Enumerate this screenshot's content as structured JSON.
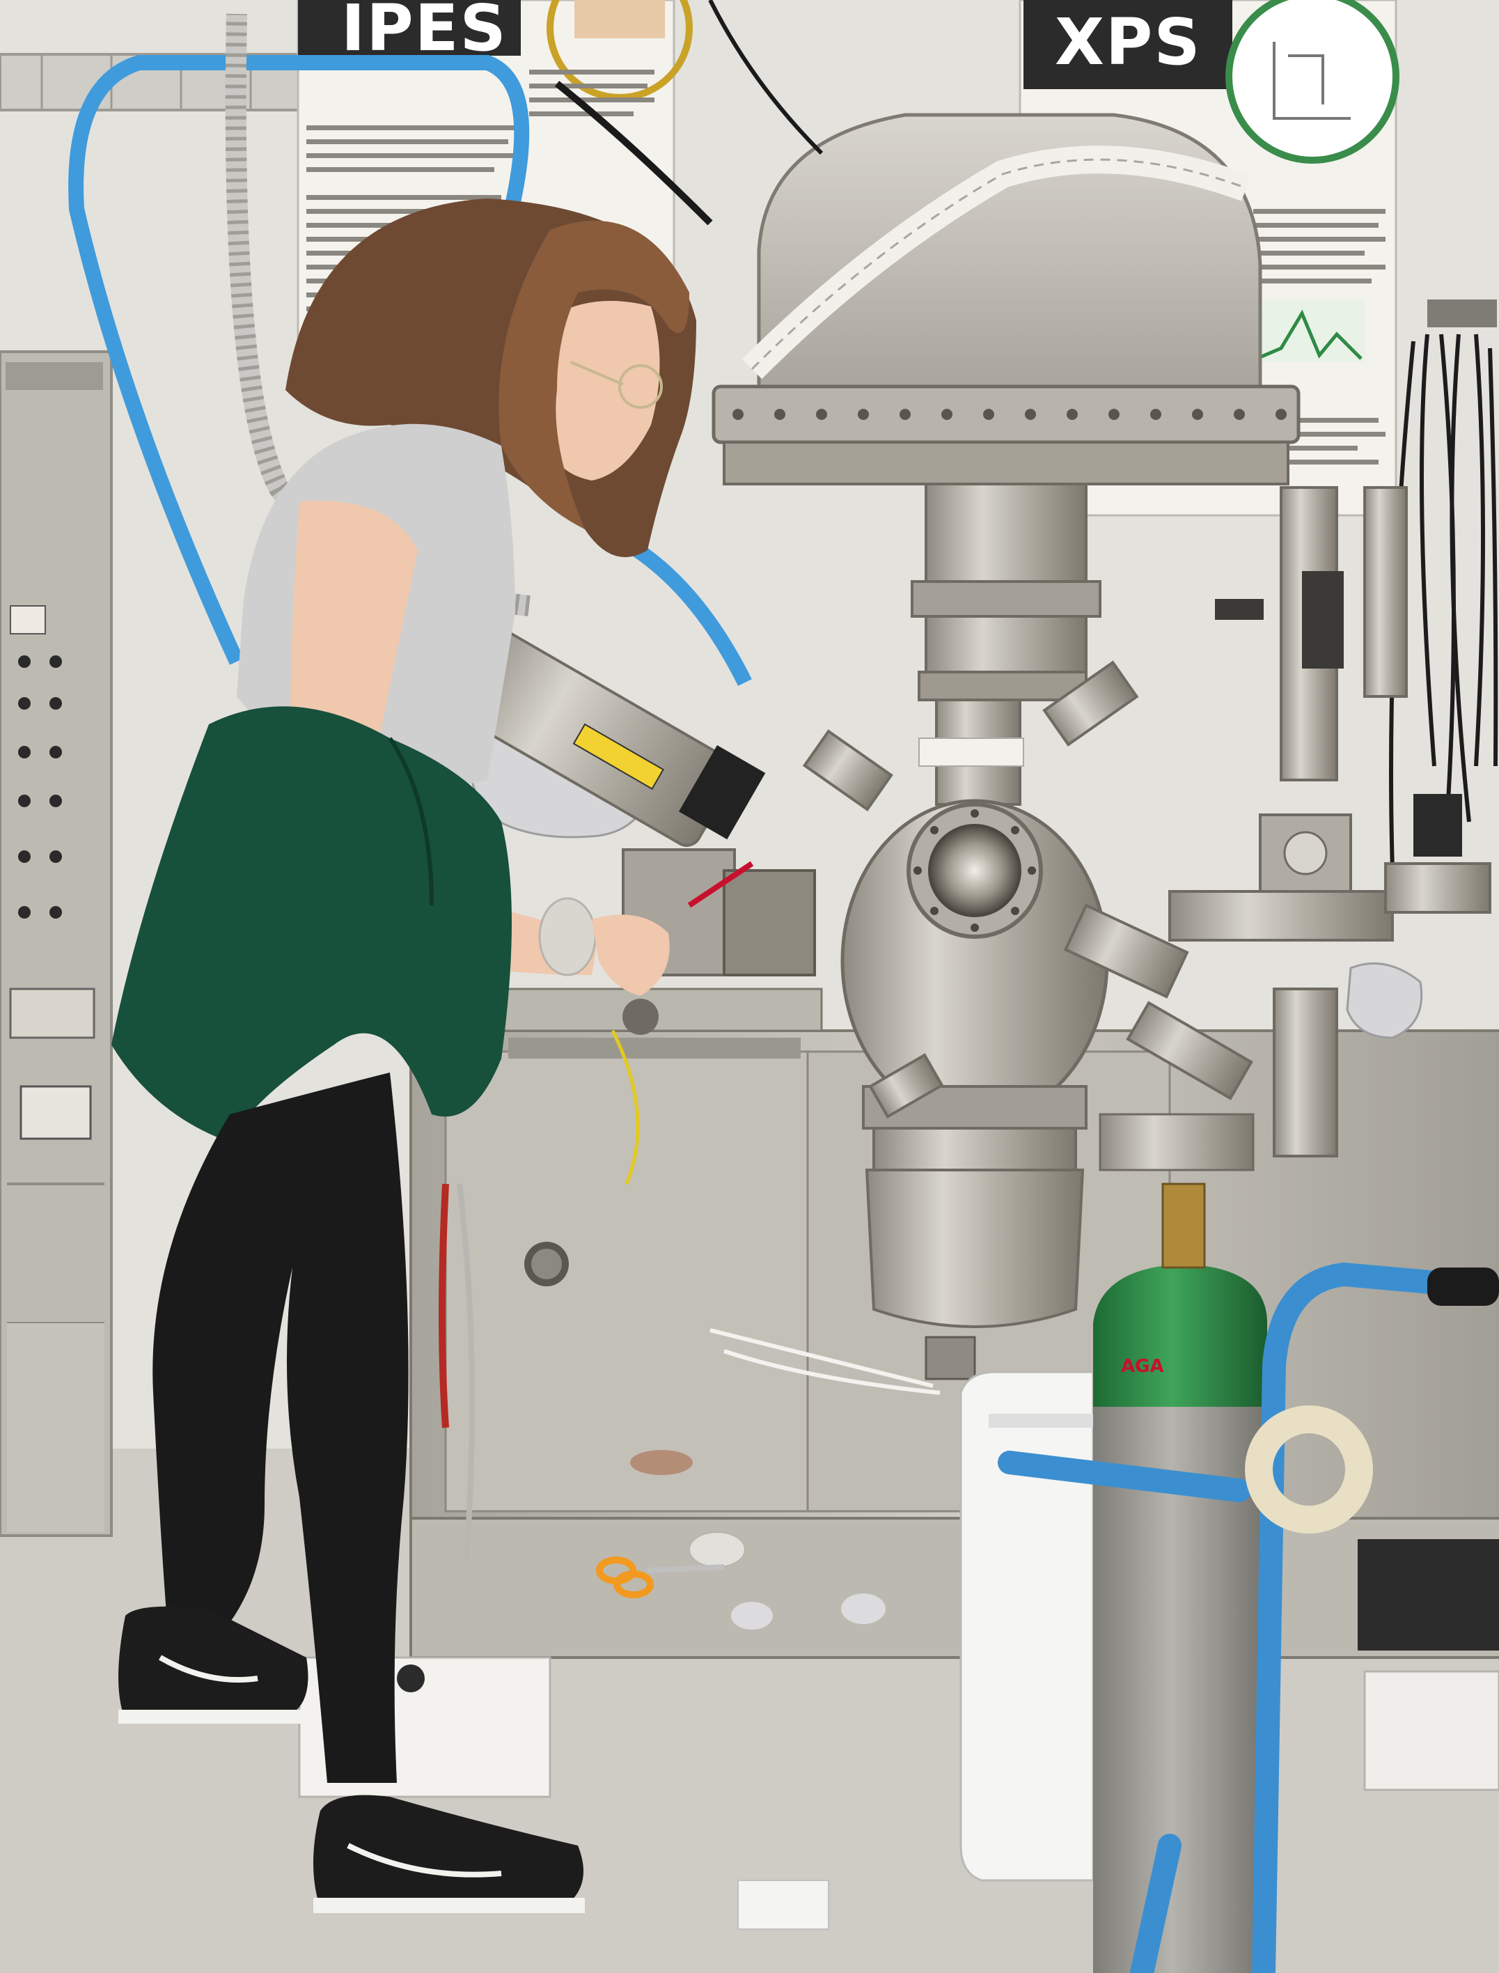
{
  "scene": {
    "poster_left_title": "IPES",
    "poster_right_title": "XPS",
    "cylinder_label": "AGA"
  },
  "colors": {
    "wall": "#e4e2dd",
    "floor": "#cfccc5",
    "steel": "#b9b6ae",
    "steel_dark": "#8d897f",
    "poster_banner": "#2b2b2b",
    "cylinder_green": "#2f8a45",
    "cylinder_grey": "#9c9a94",
    "cart_blue": "#3b8fd0",
    "hose_blue": "#3f9bdc",
    "sweater_green": "#17503b",
    "leggings": "#1a1a1a"
  },
  "icons": {
    "scissors": "scissors-icon"
  }
}
